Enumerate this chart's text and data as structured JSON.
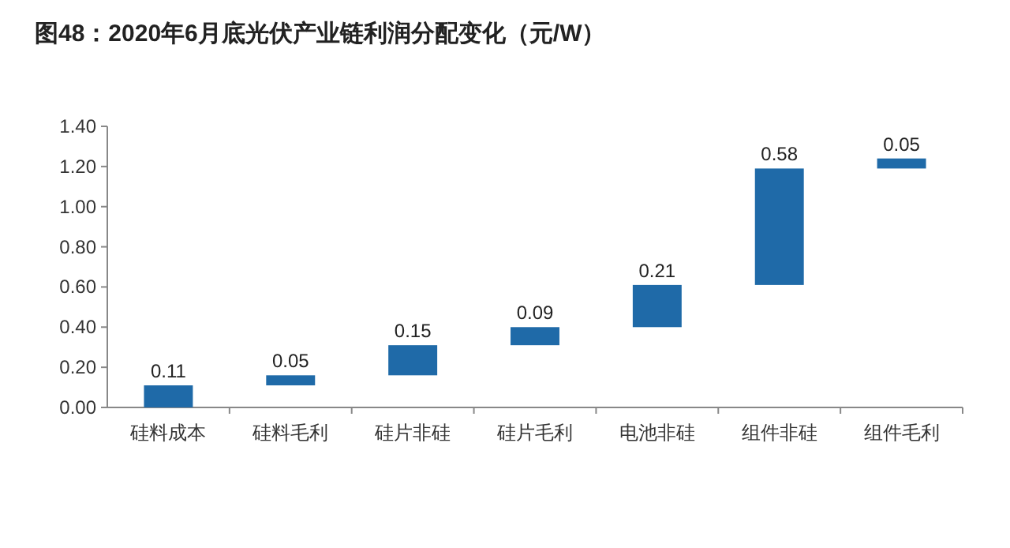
{
  "chart_data": {
    "type": "bar",
    "title": "图48：2020年6月底光伏产业链利润分配变化（元/W）",
    "categories": [
      "硅料成本",
      "硅料毛利",
      "硅片非硅",
      "硅片毛利",
      "电池非硅",
      "组件非硅",
      "组件毛利"
    ],
    "values": [
      0.11,
      0.05,
      0.15,
      0.09,
      0.21,
      0.58,
      0.05
    ],
    "base": [
      0,
      0.11,
      0.16,
      0.31,
      0.4,
      0.61,
      1.19
    ],
    "color": "#1f6aa8",
    "ylim": [
      0,
      1.4
    ],
    "yticks": [
      {
        "value": 0,
        "label": "0.00"
      },
      {
        "value": 0.2,
        "label": "0.20"
      },
      {
        "value": 0.4,
        "label": "0.40"
      },
      {
        "value": 0.6,
        "label": "0.60"
      },
      {
        "value": 0.8,
        "label": "0.80"
      },
      {
        "value": 1.0,
        "label": "1.00"
      },
      {
        "value": 1.2,
        "label": "1.20"
      },
      {
        "value": 1.4,
        "label": "1.40"
      }
    ],
    "data_labels": true
  }
}
